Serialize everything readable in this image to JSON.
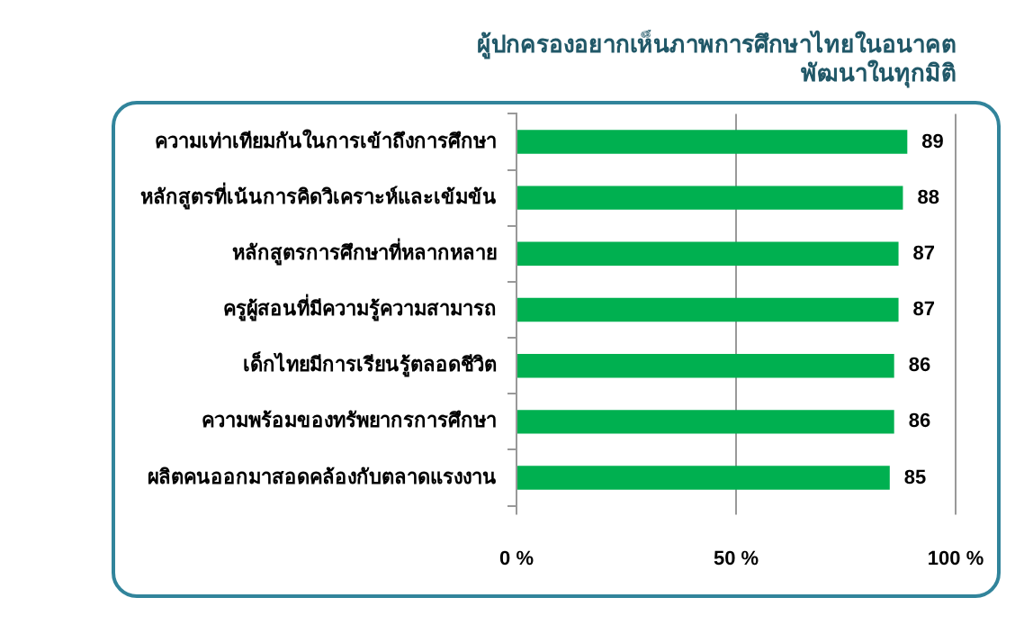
{
  "chart_data": {
    "type": "bar",
    "orientation": "horizontal",
    "title": "ผู้ปกครองอยากเห็นภาพการศึกษาไทยในอนาคต\nพัฒนาในทุกมิติ",
    "categories": [
      "ความเท่าเทียมกันในการเข้าถึงการศึกษา",
      "หลักสูตรที่เน้นการคิดวิเคราะห์และเข้มข้น",
      "หลักสูตรการศึกษาที่หลากหลาย",
      "ครูผู้สอนที่มีความรู้ความสามารถ",
      "เด็กไทยมีการเรียนรู้ตลอดชีวิต",
      "ความพร้อมของทรัพยากรการศึกษา",
      "ผลิตคนออกมาสอดคล้องกับตลาดแรงงาน"
    ],
    "values": [
      89,
      88,
      87,
      87,
      86,
      86,
      85
    ],
    "color": "#00b050",
    "data_labels": true,
    "xlim": [
      0,
      100
    ],
    "xticks": [
      {
        "value": 0,
        "label": "0 %"
      },
      {
        "value": 50,
        "label": "50 %"
      },
      {
        "value": 100,
        "label": "100 %"
      }
    ],
    "grid": "x",
    "legend": false
  }
}
